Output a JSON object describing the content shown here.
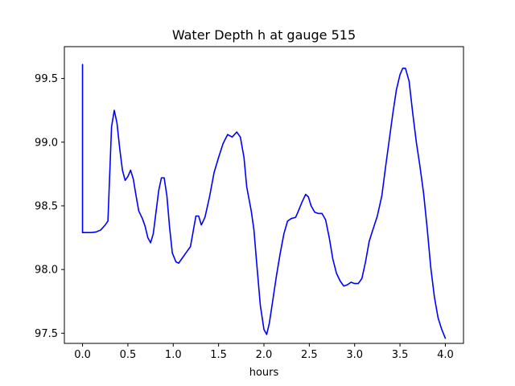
{
  "chart_data": {
    "type": "line",
    "title": "Water Depth h at gauge 515",
    "xlabel": "hours",
    "ylabel": "",
    "xlim": [
      -0.2,
      4.2
    ],
    "ylim": [
      97.42,
      99.75
    ],
    "x_ticks": [
      0.0,
      0.5,
      1.0,
      1.5,
      2.0,
      2.5,
      3.0,
      3.5,
      4.0
    ],
    "x_tick_labels": [
      "0.0",
      "0.5",
      "1.0",
      "1.5",
      "2.0",
      "2.5",
      "3.0",
      "3.5",
      "4.0"
    ],
    "y_ticks": [
      97.5,
      98.0,
      98.5,
      99.0,
      99.5
    ],
    "y_tick_labels": [
      "97.5",
      "98.0",
      "98.5",
      "99.0",
      "99.5"
    ],
    "grid": false,
    "legend": "none",
    "series": [
      {
        "color": "#0000ff",
        "points": [
          [
            0.0,
            99.61
          ],
          [
            0.0,
            98.29
          ],
          [
            0.05,
            98.29
          ],
          [
            0.1,
            98.29
          ],
          [
            0.15,
            98.295
          ],
          [
            0.2,
            98.31
          ],
          [
            0.25,
            98.35
          ],
          [
            0.28,
            98.38
          ],
          [
            0.3,
            98.75
          ],
          [
            0.32,
            99.12
          ],
          [
            0.35,
            99.25
          ],
          [
            0.38,
            99.15
          ],
          [
            0.41,
            98.95
          ],
          [
            0.44,
            98.78
          ],
          [
            0.47,
            98.7
          ],
          [
            0.5,
            98.73
          ],
          [
            0.53,
            98.78
          ],
          [
            0.56,
            98.71
          ],
          [
            0.59,
            98.58
          ],
          [
            0.62,
            98.46
          ],
          [
            0.66,
            98.4
          ],
          [
            0.69,
            98.34
          ],
          [
            0.72,
            98.25
          ],
          [
            0.75,
            98.21
          ],
          [
            0.78,
            98.28
          ],
          [
            0.81,
            98.45
          ],
          [
            0.84,
            98.62
          ],
          [
            0.87,
            98.72
          ],
          [
            0.9,
            98.72
          ],
          [
            0.93,
            98.58
          ],
          [
            0.96,
            98.33
          ],
          [
            0.99,
            98.13
          ],
          [
            1.03,
            98.06
          ],
          [
            1.06,
            98.05
          ],
          [
            1.1,
            98.09
          ],
          [
            1.15,
            98.14
          ],
          [
            1.19,
            98.18
          ],
          [
            1.22,
            98.3
          ],
          [
            1.25,
            98.42
          ],
          [
            1.28,
            98.42
          ],
          [
            1.31,
            98.35
          ],
          [
            1.35,
            98.41
          ],
          [
            1.4,
            98.57
          ],
          [
            1.45,
            98.76
          ],
          [
            1.5,
            98.88
          ],
          [
            1.55,
            98.99
          ],
          [
            1.6,
            99.06
          ],
          [
            1.65,
            99.04
          ],
          [
            1.7,
            99.08
          ],
          [
            1.74,
            99.04
          ],
          [
            1.78,
            98.88
          ],
          [
            1.81,
            98.65
          ],
          [
            1.86,
            98.46
          ],
          [
            1.89,
            98.31
          ],
          [
            1.92,
            98.05
          ],
          [
            1.96,
            97.72
          ],
          [
            2.0,
            97.53
          ],
          [
            2.03,
            97.49
          ],
          [
            2.06,
            97.58
          ],
          [
            2.1,
            97.77
          ],
          [
            2.14,
            97.96
          ],
          [
            2.18,
            98.13
          ],
          [
            2.22,
            98.28
          ],
          [
            2.26,
            98.38
          ],
          [
            2.3,
            98.4
          ],
          [
            2.35,
            98.41
          ],
          [
            2.38,
            98.46
          ],
          [
            2.42,
            98.53
          ],
          [
            2.46,
            98.59
          ],
          [
            2.49,
            98.57
          ],
          [
            2.52,
            98.5
          ],
          [
            2.56,
            98.45
          ],
          [
            2.6,
            98.44
          ],
          [
            2.64,
            98.44
          ],
          [
            2.68,
            98.39
          ],
          [
            2.72,
            98.25
          ],
          [
            2.76,
            98.08
          ],
          [
            2.8,
            97.97
          ],
          [
            2.84,
            97.91
          ],
          [
            2.88,
            97.87
          ],
          [
            2.92,
            97.88
          ],
          [
            2.96,
            97.9
          ],
          [
            3.0,
            97.89
          ],
          [
            3.04,
            97.89
          ],
          [
            3.08,
            97.93
          ],
          [
            3.12,
            98.06
          ],
          [
            3.16,
            98.22
          ],
          [
            3.2,
            98.31
          ],
          [
            3.25,
            98.42
          ],
          [
            3.3,
            98.58
          ],
          [
            3.34,
            98.8
          ],
          [
            3.38,
            99.01
          ],
          [
            3.42,
            99.22
          ],
          [
            3.46,
            99.41
          ],
          [
            3.5,
            99.53
          ],
          [
            3.53,
            99.58
          ],
          [
            3.56,
            99.58
          ],
          [
            3.6,
            99.48
          ],
          [
            3.64,
            99.23
          ],
          [
            3.68,
            99.0
          ],
          [
            3.72,
            98.81
          ],
          [
            3.76,
            98.6
          ],
          [
            3.8,
            98.32
          ],
          [
            3.84,
            98.01
          ],
          [
            3.88,
            97.78
          ],
          [
            3.92,
            97.62
          ],
          [
            3.96,
            97.53
          ],
          [
            4.0,
            97.46
          ]
        ]
      }
    ]
  }
}
